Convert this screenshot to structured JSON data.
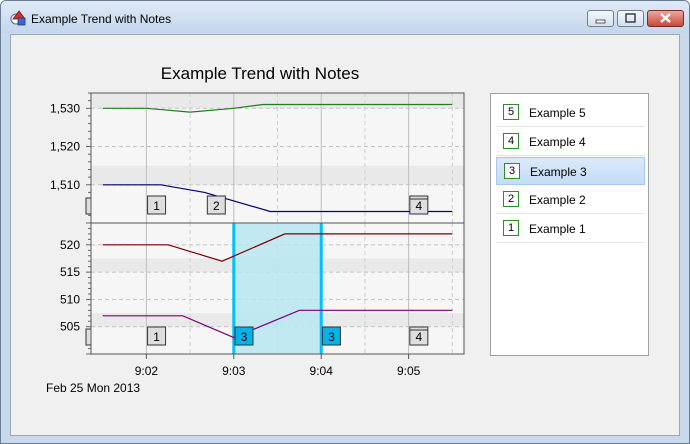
{
  "window": {
    "title": "Example Trend with Notes",
    "controls": [
      "minimize",
      "maximize",
      "close"
    ]
  },
  "chart_data": {
    "type": "line",
    "title": "Example Trend with Notes",
    "date_label": "Feb 25 Mon 2013",
    "x_ticks": [
      "9:02",
      "9:03",
      "9:04",
      "9:05"
    ],
    "x_range": [
      "9:01:22",
      "9:05:38"
    ],
    "panels": [
      {
        "ylim": [
          1500,
          1534
        ],
        "y_ticks": [
          "1,530",
          "1,520",
          "1,510"
        ],
        "series": [
          {
            "color": "#1e7e1e",
            "points": [
              [
                "9:01:30",
                1530
              ],
              [
                "9:02:00",
                1530
              ],
              [
                "9:02:30",
                1529
              ],
              [
                "9:03:00",
                1530
              ],
              [
                "9:03:20",
                1531
              ],
              [
                "9:05:30",
                1531
              ]
            ]
          },
          {
            "color": "#00007a",
            "points": [
              [
                "9:01:30",
                1510
              ],
              [
                "9:02:10",
                1510
              ],
              [
                "9:02:40",
                1508
              ],
              [
                "9:03:25",
                1503
              ],
              [
                "9:05:30",
                1503
              ]
            ]
          }
        ],
        "notes": [
          {
            "label": "1",
            "x": "9:02:07"
          },
          {
            "label": "2",
            "x": "9:02:48"
          },
          {
            "label": "4",
            "x": "9:05:07"
          }
        ]
      },
      {
        "ylim": [
          500,
          524
        ],
        "y_ticks": [
          "520",
          "515",
          "510",
          "505"
        ],
        "series": [
          {
            "color": "#7a0000",
            "points": [
              [
                "9:01:30",
                520
              ],
              [
                "9:02:15",
                520
              ],
              [
                "9:02:52",
                517
              ],
              [
                "9:03:35",
                522
              ],
              [
                "9:05:30",
                522
              ]
            ]
          },
          {
            "color": "#7a007a",
            "points": [
              [
                "9:01:30",
                507
              ],
              [
                "9:02:25",
                507
              ],
              [
                "9:03:00",
                503
              ],
              [
                "9:03:45",
                508
              ],
              [
                "9:05:30",
                508
              ]
            ]
          }
        ],
        "notes": [
          {
            "label": "1",
            "x": "9:02:07"
          },
          {
            "label": "3",
            "x": "9:03:07"
          },
          {
            "label": "3",
            "x": "9:04:07"
          },
          {
            "label": "4",
            "x": "9:05:07"
          }
        ],
        "highlight": {
          "from": "9:03:00",
          "to": "9:04:00",
          "color": "#00c0ff"
        }
      }
    ]
  },
  "legend": {
    "items": [
      {
        "num": "5",
        "label": "Example 5"
      },
      {
        "num": "4",
        "label": "Example 4"
      },
      {
        "num": "3",
        "label": "Example 3",
        "selected": true
      },
      {
        "num": "2",
        "label": "Example 2"
      },
      {
        "num": "1",
        "label": "Example 1"
      }
    ]
  }
}
